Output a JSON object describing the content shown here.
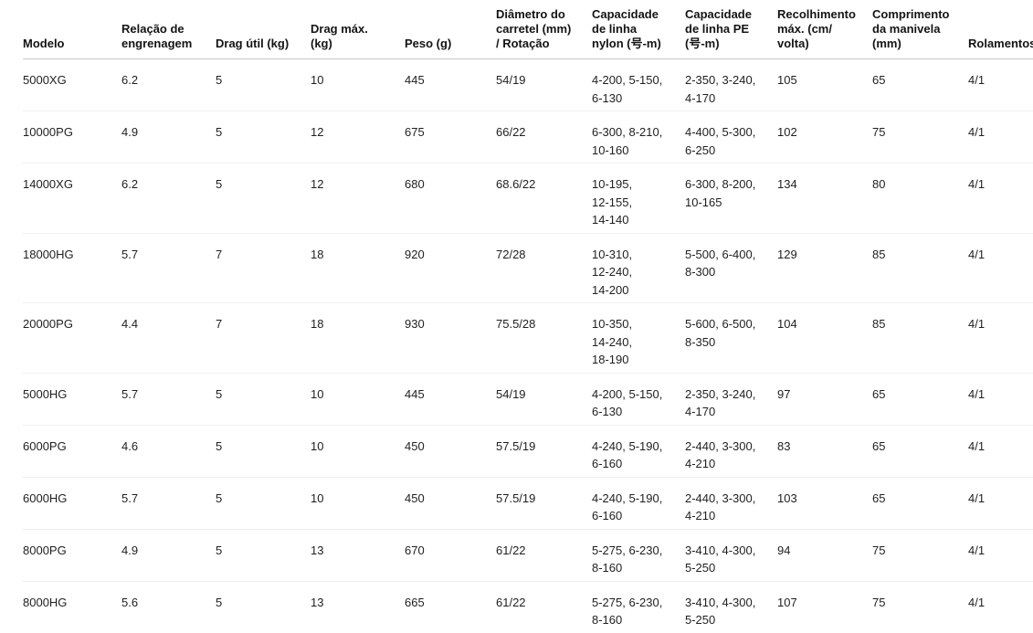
{
  "colors": {
    "background": "#ffffff",
    "header_text": "#141414",
    "body_text": "#1f1f1f",
    "header_border": "#c9c9c9",
    "row_border": "#f0f0f0"
  },
  "table": {
    "columns": [
      {
        "key": "model",
        "label": "Modelo"
      },
      {
        "key": "gear_ratio",
        "label": "Relação de\nengrenagem"
      },
      {
        "key": "usable_drag_kg",
        "label": "Drag útil (kg)"
      },
      {
        "key": "max_drag_kg",
        "label": "Drag máx.\n(kg)"
      },
      {
        "key": "weight_g",
        "label": "Peso (g)"
      },
      {
        "key": "spool_diameter_rotation",
        "label": "Diâmetro do\ncarretel (mm)\n/ Rotação"
      },
      {
        "key": "nylon_line_capacity",
        "label": "Capacidade\nde linha\nnylon (号-m)"
      },
      {
        "key": "pe_line_capacity",
        "label": "Capacidade\nde linha PE\n(号-m)"
      },
      {
        "key": "max_retrieve_cm_per_volta",
        "label": "Recolhimento\nmáx. (cm/\nvolta)"
      },
      {
        "key": "handle_length_mm",
        "label": "Comprimento\nda manivela\n(mm)"
      },
      {
        "key": "bearings",
        "label": "Rolamentos"
      }
    ],
    "rows": [
      {
        "model": "5000XG",
        "gear_ratio": "6.2",
        "usable_drag_kg": "5",
        "max_drag_kg": "10",
        "weight_g": "445",
        "spool_diameter_rotation": "54/19",
        "nylon_line_capacity": "4-200, 5-150,\n6-130",
        "pe_line_capacity": "2-350, 3-240,\n4-170",
        "max_retrieve_cm_per_volta": "105",
        "handle_length_mm": "65",
        "bearings": "4/1"
      },
      {
        "model": "10000PG",
        "gear_ratio": "4.9",
        "usable_drag_kg": "5",
        "max_drag_kg": "12",
        "weight_g": "675",
        "spool_diameter_rotation": "66/22",
        "nylon_line_capacity": "6-300, 8-210,\n10-160",
        "pe_line_capacity": "4-400, 5-300,\n6-250",
        "max_retrieve_cm_per_volta": "102",
        "handle_length_mm": "75",
        "bearings": "4/1"
      },
      {
        "model": "14000XG",
        "gear_ratio": "6.2",
        "usable_drag_kg": "5",
        "max_drag_kg": "12",
        "weight_g": "680",
        "spool_diameter_rotation": "68.6/22",
        "nylon_line_capacity": "10-195,\n12-155,\n14-140",
        "pe_line_capacity": "6-300, 8-200,\n10-165",
        "max_retrieve_cm_per_volta": "134",
        "handle_length_mm": "80",
        "bearings": "4/1"
      },
      {
        "model": "18000HG",
        "gear_ratio": "5.7",
        "usable_drag_kg": "7",
        "max_drag_kg": "18",
        "weight_g": "920",
        "spool_diameter_rotation": "72/28",
        "nylon_line_capacity": "10-310,\n12-240,\n14-200",
        "pe_line_capacity": "5-500, 6-400,\n8-300",
        "max_retrieve_cm_per_volta": "129",
        "handle_length_mm": "85",
        "bearings": "4/1"
      },
      {
        "model": "20000PG",
        "gear_ratio": "4.4",
        "usable_drag_kg": "7",
        "max_drag_kg": "18",
        "weight_g": "930",
        "spool_diameter_rotation": "75.5/28",
        "nylon_line_capacity": "10-350,\n14-240,\n18-190",
        "pe_line_capacity": "5-600, 6-500,\n8-350",
        "max_retrieve_cm_per_volta": "104",
        "handle_length_mm": "85",
        "bearings": "4/1"
      },
      {
        "model": "5000HG",
        "gear_ratio": "5.7",
        "usable_drag_kg": "5",
        "max_drag_kg": "10",
        "weight_g": "445",
        "spool_diameter_rotation": "54/19",
        "nylon_line_capacity": "4-200, 5-150,\n6-130",
        "pe_line_capacity": "2-350, 3-240,\n4-170",
        "max_retrieve_cm_per_volta": "97",
        "handle_length_mm": "65",
        "bearings": "4/1"
      },
      {
        "model": "6000PG",
        "gear_ratio": "4.6",
        "usable_drag_kg": "5",
        "max_drag_kg": "10",
        "weight_g": "450",
        "spool_diameter_rotation": "57.5/19",
        "nylon_line_capacity": "4-240, 5-190,\n6-160",
        "pe_line_capacity": "2-440, 3-300,\n4-210",
        "max_retrieve_cm_per_volta": "83",
        "handle_length_mm": "65",
        "bearings": "4/1"
      },
      {
        "model": "6000HG",
        "gear_ratio": "5.7",
        "usable_drag_kg": "5",
        "max_drag_kg": "10",
        "weight_g": "450",
        "spool_diameter_rotation": "57.5/19",
        "nylon_line_capacity": "4-240, 5-190,\n6-160",
        "pe_line_capacity": "2-440, 3-300,\n4-210",
        "max_retrieve_cm_per_volta": "103",
        "handle_length_mm": "65",
        "bearings": "4/1"
      },
      {
        "model": "8000PG",
        "gear_ratio": "4.9",
        "usable_drag_kg": "5",
        "max_drag_kg": "13",
        "weight_g": "670",
        "spool_diameter_rotation": "61/22",
        "nylon_line_capacity": "5-275, 6-230,\n8-160",
        "pe_line_capacity": "3-410, 4-300,\n5-250",
        "max_retrieve_cm_per_volta": "94",
        "handle_length_mm": "75",
        "bearings": "4/1"
      },
      {
        "model": "8000HG",
        "gear_ratio": "5.6",
        "usable_drag_kg": "5",
        "max_drag_kg": "13",
        "weight_g": "665",
        "spool_diameter_rotation": "61/22",
        "nylon_line_capacity": "5-275, 6-230,\n8-160",
        "pe_line_capacity": "3-410, 4-300,\n5-250",
        "max_retrieve_cm_per_volta": "107",
        "handle_length_mm": "75",
        "bearings": "4/1"
      }
    ]
  }
}
